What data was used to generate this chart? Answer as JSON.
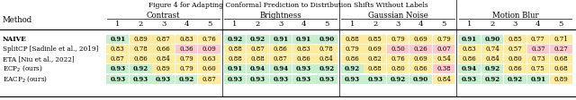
{
  "title": "Figure 4 for Adapting Conformal Prediction to Distribution Shifts Without Labels",
  "group_headers": [
    "Contrast",
    "Brightness",
    "Gaussian Noise",
    "Motion Blur"
  ],
  "col_labels": [
    "1",
    "2",
    "3",
    "4",
    "5",
    "1",
    "2",
    "3",
    "4",
    "5",
    "1",
    "2",
    "3",
    "4",
    "5",
    "1",
    "2",
    "3",
    "4",
    "5"
  ],
  "method_labels": [
    "NAIVE",
    "SplitCP [Sadinle et al., 2019]",
    "ETA [Niu et al., 2022]",
    "ECP$_2$ (ours)",
    "EACP$_2$ (ours)"
  ],
  "method_weights": [
    "bold",
    "normal",
    "normal",
    "normal",
    "normal"
  ],
  "values": [
    [
      0.91,
      0.89,
      0.87,
      0.83,
      0.76,
      0.92,
      0.92,
      0.91,
      0.91,
      0.9,
      0.88,
      0.85,
      0.79,
      0.69,
      0.79,
      0.91,
      0.9,
      0.85,
      0.77,
      0.71
    ],
    [
      0.83,
      0.78,
      0.66,
      0.36,
      0.09,
      0.88,
      0.87,
      0.86,
      0.83,
      0.78,
      0.79,
      0.69,
      0.5,
      0.26,
      0.07,
      0.83,
      0.74,
      0.57,
      0.37,
      0.27
    ],
    [
      0.87,
      0.86,
      0.84,
      0.79,
      0.63,
      0.88,
      0.88,
      0.87,
      0.86,
      0.84,
      0.86,
      0.82,
      0.76,
      0.69,
      0.54,
      0.86,
      0.84,
      0.8,
      0.73,
      0.68
    ],
    [
      0.93,
      0.92,
      0.89,
      0.79,
      0.6,
      0.91,
      0.94,
      0.94,
      0.93,
      0.92,
      0.92,
      0.88,
      0.8,
      0.86,
      0.38,
      0.94,
      0.92,
      0.86,
      0.75,
      0.68
    ],
    [
      0.93,
      0.93,
      0.93,
      0.92,
      0.87,
      0.93,
      0.93,
      0.93,
      0.93,
      0.93,
      0.93,
      0.93,
      0.92,
      0.9,
      0.84,
      0.93,
      0.92,
      0.92,
      0.91,
      0.89
    ]
  ],
  "green_threshold": 0.9,
  "red_threshold": 0.5,
  "green_color": "#c6efce",
  "red_color": "#ffc7ce",
  "yellow_color": "#ffeb9c",
  "separator_cols": [
    5,
    10,
    15
  ],
  "figsize": [
    6.4,
    1.12
  ],
  "dpi": 100
}
